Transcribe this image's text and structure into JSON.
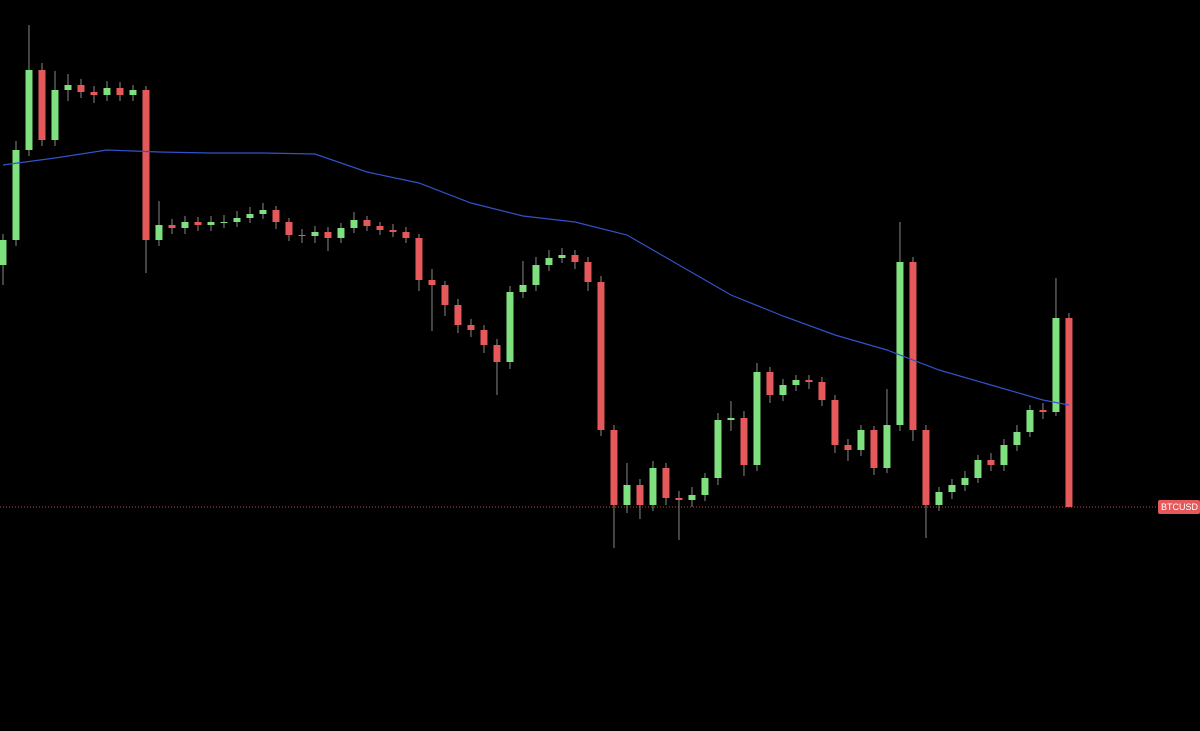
{
  "chart_data": {
    "type": "candlestick",
    "xlim": [
      -0.23,
      92.08
    ],
    "ylim": [
      0,
      731
    ],
    "up_color": "#7fe07f",
    "down_color": "#e5595a",
    "open": [
      466,
      491,
      581,
      661,
      591,
      641,
      646,
      639,
      636,
      643,
      636,
      641,
      491,
      506,
      503,
      509,
      506,
      509,
      509,
      513,
      517,
      521,
      509,
      496,
      495,
      499,
      493,
      503,
      511,
      505,
      501,
      499,
      493,
      451,
      446,
      426,
      406,
      401,
      386,
      369,
      439,
      446,
      466,
      473,
      476,
      469,
      449,
      301,
      226,
      246,
      226,
      263,
      233,
      231,
      236,
      253,
      311,
      313,
      266,
      359,
      336,
      346,
      351,
      349,
      331,
      286,
      281,
      301,
      263,
      306,
      469,
      301,
      226,
      239,
      246,
      253,
      271,
      266,
      286,
      299,
      321,
      319,
      413
    ],
    "high": [
      497,
      590,
      706,
      668,
      660,
      657,
      652,
      645,
      650,
      649,
      646,
      645,
      530,
      512,
      515,
      514,
      515,
      516,
      520,
      524,
      528,
      525,
      513,
      502,
      505,
      504,
      508,
      519,
      515,
      509,
      507,
      504,
      497,
      462,
      450,
      432,
      412,
      406,
      392,
      445,
      470,
      474,
      481,
      483,
      481,
      474,
      455,
      306,
      268,
      252,
      270,
      268,
      240,
      244,
      258,
      318,
      330,
      320,
      368,
      364,
      352,
      356,
      356,
      354,
      336,
      292,
      306,
      305,
      342,
      509,
      474,
      306,
      244,
      252,
      260,
      276,
      278,
      292,
      306,
      326,
      328,
      453,
      418
    ],
    "low": [
      446,
      485,
      575,
      585,
      585,
      630,
      633,
      628,
      630,
      630,
      630,
      458,
      485,
      497,
      497,
      500,
      500,
      503,
      504,
      508,
      512,
      502,
      490,
      488,
      488,
      480,
      488,
      498,
      500,
      496,
      494,
      488,
      440,
      400,
      415,
      398,
      394,
      378,
      336,
      362,
      433,
      440,
      460,
      468,
      462,
      440,
      295,
      183,
      218,
      212,
      220,
      226,
      191,
      224,
      230,
      246,
      300,
      255,
      260,
      328,
      330,
      340,
      342,
      325,
      278,
      270,
      275,
      256,
      258,
      300,
      290,
      193,
      220,
      232,
      240,
      248,
      260,
      260,
      280,
      294,
      312,
      315,
      224
    ],
    "close": [
      491,
      581,
      661,
      591,
      641,
      646,
      639,
      636,
      643,
      636,
      641,
      491,
      506,
      503,
      509,
      506,
      509,
      509,
      513,
      517,
      521,
      509,
      496,
      495,
      499,
      493,
      503,
      511,
      505,
      501,
      499,
      493,
      451,
      446,
      426,
      406,
      401,
      386,
      369,
      439,
      446,
      466,
      473,
      476,
      469,
      449,
      301,
      226,
      246,
      226,
      263,
      233,
      231,
      236,
      253,
      311,
      313,
      266,
      359,
      336,
      346,
      351,
      349,
      331,
      286,
      281,
      301,
      263,
      306,
      469,
      301,
      226,
      239,
      246,
      253,
      271,
      266,
      286,
      299,
      321,
      319,
      413,
      224
    ],
    "moving_average": {
      "color": "#3352c9",
      "x": [
        0,
        4,
        8,
        12,
        16,
        20,
        24,
        28,
        32,
        36,
        40,
        44,
        48,
        52,
        56,
        60,
        64,
        68,
        72,
        76,
        80,
        82
      ],
      "values": [
        566,
        573,
        581,
        579,
        578,
        578,
        577,
        559,
        548,
        528,
        515,
        509,
        496,
        466,
        436,
        415,
        396,
        381,
        361,
        346,
        331,
        326
      ]
    },
    "last_price": {
      "label": "BTCUSD",
      "value": 224,
      "color": "#e5595a"
    }
  }
}
